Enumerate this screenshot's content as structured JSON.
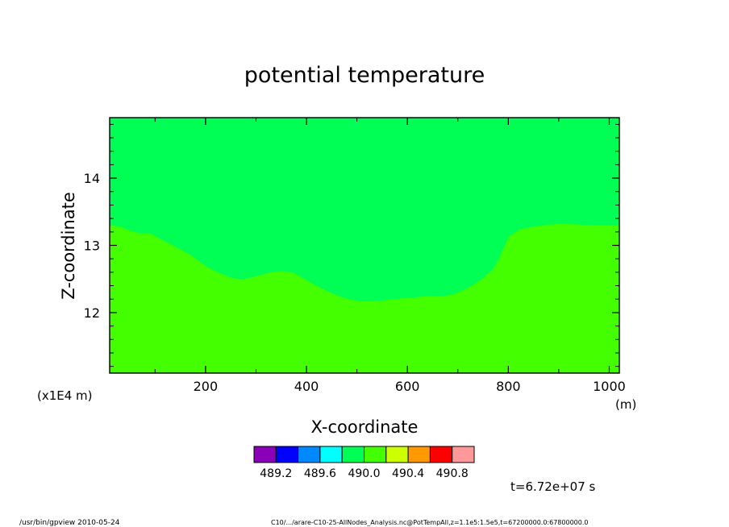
{
  "chart_data": {
    "type": "heatmap",
    "title": "potential temperature",
    "xlabel": "X-coordinate",
    "ylabel": "Z-coordinate",
    "x_unit": "(m)",
    "y_scale_note": "(x1E4 m)",
    "xlim": [
      10,
      1020
    ],
    "ylim": [
      11.1,
      14.9
    ],
    "x_ticks": [
      200,
      400,
      600,
      800,
      1000
    ],
    "y_ticks": [
      12,
      13,
      14
    ],
    "x_tick_labels": [
      "200",
      "400",
      "600",
      "800",
      "1000"
    ],
    "y_tick_labels": [
      "12",
      "13",
      "14"
    ],
    "upper_region_color": "#00ff55",
    "lower_region_color": "#44ff00",
    "interface": {
      "x": [
        10,
        30,
        50,
        70,
        90,
        110,
        130,
        150,
        170,
        190,
        210,
        230,
        250,
        270,
        290,
        310,
        330,
        350,
        370,
        390,
        410,
        430,
        450,
        470,
        490,
        510,
        530,
        550,
        570,
        590,
        610,
        630,
        650,
        670,
        690,
        710,
        730,
        750,
        770,
        780,
        790,
        800,
        820,
        850,
        880,
        910,
        940,
        970,
        1000,
        1020
      ],
      "z": [
        13.3,
        13.28,
        13.22,
        13.18,
        13.18,
        13.1,
        13.02,
        12.94,
        12.86,
        12.75,
        12.65,
        12.58,
        12.52,
        12.49,
        12.52,
        12.56,
        12.6,
        12.62,
        12.6,
        12.53,
        12.44,
        12.36,
        12.29,
        12.23,
        12.19,
        12.17,
        12.17,
        12.18,
        12.2,
        12.21,
        12.22,
        12.24,
        12.25,
        12.24,
        12.27,
        12.33,
        12.41,
        12.51,
        12.65,
        12.78,
        12.95,
        13.12,
        13.23,
        13.28,
        13.31,
        13.32,
        13.31,
        13.3,
        13.3,
        13.3
      ]
    },
    "colorbar": {
      "colors": [
        "#8a00b8",
        "#0000ff",
        "#0088ff",
        "#00ffff",
        "#00ff55",
        "#44ff00",
        "#ccff00",
        "#ff9900",
        "#ff0000",
        "#ff9999"
      ],
      "labels": [
        "489.2",
        "489.6",
        "490.0",
        "490.4",
        "490.8"
      ]
    }
  },
  "time_label": "t=6.72e+07 s",
  "footer": {
    "left": "/usr/bin/gpview  2010-05-24",
    "right": "C10/.../arare-C10-25-AllNodes_Analysis.nc@PotTempAll,z=1.1e5:1.5e5,t=67200000.0:67800000.0"
  }
}
